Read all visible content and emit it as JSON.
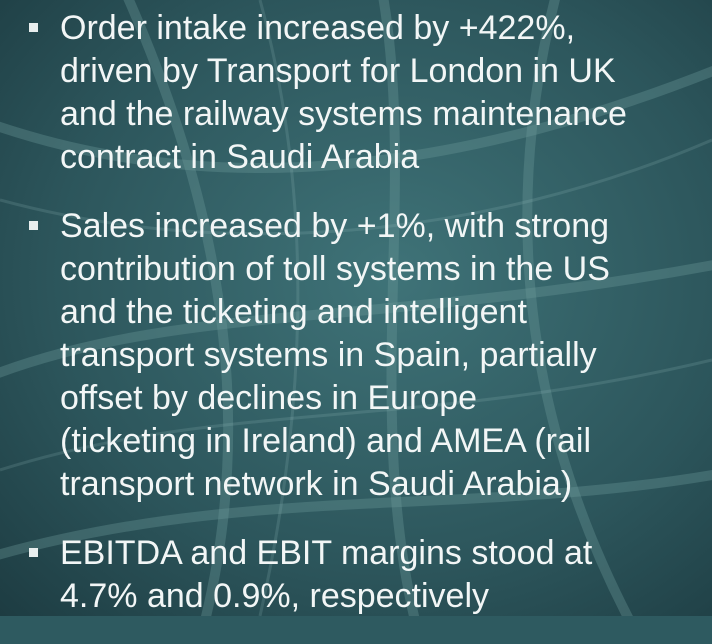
{
  "bullets": [
    {
      "lines": [
        "Order intake increased by +422%,",
        "driven by Transport for London in UK",
        "and the railway systems maintenance",
        "contract in Saudi Arabia"
      ]
    },
    {
      "lines": [
        "Sales increased by +1%, with strong",
        "contribution of toll systems in the US",
        "and the ticketing and intelligent",
        "transport systems in Spain, partially",
        "offset by declines in Europe",
        "(ticketing in Ireland) and AMEA (rail",
        "transport network in Saudi Arabia)"
      ]
    },
    {
      "lines": [
        "EBITDA and EBIT margins stood at",
        "4.7% and 0.9%, respectively"
      ]
    }
  ]
}
